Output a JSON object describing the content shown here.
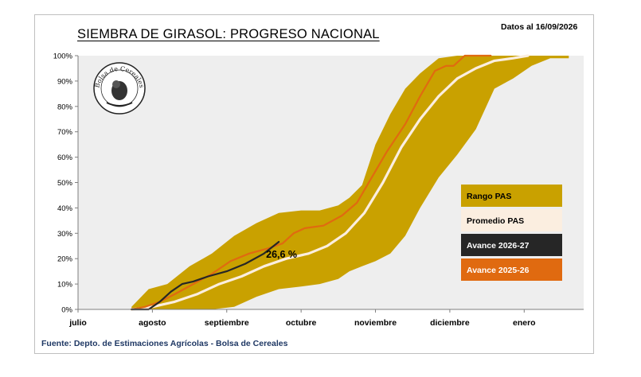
{
  "header": {
    "title": "SIEMBRA DE GIRASOL: PROGRESO NACIONAL",
    "date_label": "Datos al 16/09/2026"
  },
  "logo": {
    "text": "Bolsa de Cereales"
  },
  "footer": {
    "source": "Fuente: Depto. de Estimaciones Agrícolas - Bolsa de Cereales"
  },
  "colors": {
    "plot_background": "#eeeeee",
    "rango": "#c9a100",
    "promedio": "#fbeee0",
    "avance_actual": "#262626",
    "avance_anterior": "#e06a10"
  },
  "chart_data": {
    "type": "area",
    "title": "SIEMBRA DE GIRASOL: PROGRESO NACIONAL",
    "xlabel": "",
    "ylabel": "",
    "x_domain": [
      0,
      6.8
    ],
    "ylim": [
      0,
      100
    ],
    "y_ticks": [
      "0%",
      "10%",
      "20%",
      "30%",
      "40%",
      "50%",
      "60%",
      "70%",
      "80%",
      "90%",
      "100%"
    ],
    "categories": [
      "julio",
      "agosto",
      "septiembre",
      "octubre",
      "noviembre",
      "diciembre",
      "enero"
    ],
    "category_positions": [
      0,
      1,
      2,
      3,
      4,
      5,
      6
    ],
    "grid": false,
    "legend_position": "right",
    "series": [
      {
        "name": "Rango PAS",
        "kind": "band",
        "color": "#c9a100",
        "x": [
          0.72,
          0.95,
          1.2,
          1.5,
          1.8,
          2.1,
          2.4,
          2.7,
          3.0,
          3.25,
          3.5,
          3.65,
          3.82,
          4.0,
          4.2,
          4.4,
          4.6,
          4.85,
          5.1,
          5.35,
          5.6,
          5.85,
          6.1,
          6.35,
          6.6
        ],
        "upper": [
          1,
          8,
          10,
          17,
          22,
          29,
          34,
          38,
          39,
          39,
          41,
          44,
          49,
          65,
          77,
          87,
          93,
          99,
          100,
          100,
          100,
          100,
          100,
          100,
          100
        ],
        "lower": [
          0,
          0,
          0,
          0,
          0,
          1,
          5,
          8,
          9,
          10,
          12,
          15,
          17,
          19,
          22,
          29,
          40,
          52,
          61,
          71,
          87,
          91,
          96,
          99,
          99
        ]
      },
      {
        "name": "Promedio PAS",
        "kind": "line",
        "color": "#fbeee0",
        "x": [
          0.72,
          1.0,
          1.3,
          1.6,
          1.9,
          2.2,
          2.5,
          2.8,
          3.1,
          3.35,
          3.6,
          3.85,
          4.1,
          4.35,
          4.6,
          4.85,
          5.1,
          5.35,
          5.6,
          5.85,
          6.05
        ],
        "y": [
          0,
          1,
          3,
          6,
          10,
          13,
          17,
          20,
          22,
          25,
          30,
          38,
          50,
          64,
          75,
          84,
          91,
          95,
          98,
          99,
          100
        ]
      },
      {
        "name": "Avance 2026-27",
        "kind": "line",
        "color": "#262626",
        "x": [
          0.72,
          0.95,
          1.1,
          1.25,
          1.4,
          1.55,
          1.75,
          2.0,
          2.25,
          2.5,
          2.7
        ],
        "y": [
          0,
          0,
          3,
          7,
          10,
          11,
          13,
          15,
          18,
          22,
          26.6
        ]
      },
      {
        "name": "Avance 2025-26",
        "kind": "line",
        "color": "#e06a10",
        "x": [
          0.72,
          0.9,
          1.1,
          1.3,
          1.55,
          1.8,
          2.05,
          2.3,
          2.55,
          2.75,
          2.9,
          3.05,
          3.3,
          3.55,
          3.75,
          3.95,
          4.15,
          4.4,
          4.6,
          4.8,
          4.95,
          5.05,
          5.2,
          5.35,
          5.55
        ],
        "y": [
          0,
          1,
          3,
          6,
          10,
          14,
          19,
          22,
          24,
          26,
          30,
          32,
          33,
          37,
          42,
          52,
          62,
          73,
          84,
          94,
          96,
          96,
          100,
          100,
          100
        ]
      }
    ],
    "annotations": [
      {
        "text": "26,6 %",
        "x": 2.7,
        "y": 26.6
      }
    ]
  }
}
